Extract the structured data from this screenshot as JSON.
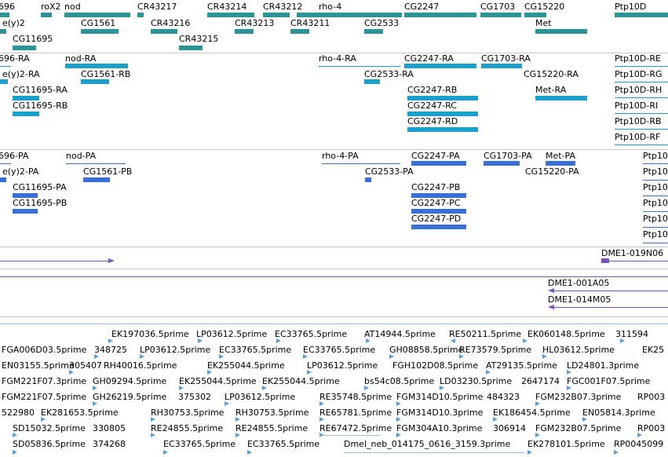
{
  "colors": {
    "gene": "#2b9494",
    "transcript_rna": "#1ba0cc",
    "transcript_protein": "#3a6fd6",
    "clone": "#7a54bf",
    "est": "#5aa0d8",
    "separator": "#c9c9c9"
  },
  "tracks": {
    "genes": [
      {
        "label": "696"
      },
      {
        "label": "roX2"
      },
      {
        "label": "nod"
      },
      {
        "label": "CR43217"
      },
      {
        "label": "CR43214"
      },
      {
        "label": "CR43212"
      },
      {
        "label": "rho-4"
      },
      {
        "label": "CG2247"
      },
      {
        "label": "CG1703"
      },
      {
        "label": "CG15220"
      },
      {
        "label": "Ptp10D"
      },
      {
        "label": "e(y)2"
      },
      {
        "label": "CG1561"
      },
      {
        "label": "CR43216"
      },
      {
        "label": "CR43213"
      },
      {
        "label": "CR43211"
      },
      {
        "label": "CG2533"
      },
      {
        "label": "Met"
      },
      {
        "label": "CG11695"
      },
      {
        "label": "CR43215"
      }
    ],
    "transcripts_rna": [
      {
        "label": "696-RA"
      },
      {
        "label": "nod-RA"
      },
      {
        "label": "rho-4-RA"
      },
      {
        "label": "CG2247-RA"
      },
      {
        "label": "CG1703-RA"
      },
      {
        "label": "Ptp10D-RE"
      },
      {
        "label": "e(y)2-RA"
      },
      {
        "label": "CG1561-RB"
      },
      {
        "label": "CG2533-RA"
      },
      {
        "label": "CG15220-RA"
      },
      {
        "label": "Ptp10D-RG"
      },
      {
        "label": "CG11695-RA"
      },
      {
        "label": "CG2247-RB"
      },
      {
        "label": "Met-RA"
      },
      {
        "label": "Ptp10D-RH"
      },
      {
        "label": "CG11695-RB"
      },
      {
        "label": "CG2247-RC"
      },
      {
        "label": "Ptp10D-RI"
      },
      {
        "label": "CG2247-RD"
      },
      {
        "label": "Ptp10D-RB"
      },
      {
        "label": "Ptp10D-RF"
      }
    ],
    "transcripts_protein": [
      {
        "label": "696-PA"
      },
      {
        "label": "nod-PA"
      },
      {
        "label": "rho-4-PA"
      },
      {
        "label": "CG2247-PA"
      },
      {
        "label": "CG1703-PA"
      },
      {
        "label": "Met-PA"
      },
      {
        "label": "Ptp10"
      },
      {
        "label": "e(y)2-PA"
      },
      {
        "label": "CG1561-PB"
      },
      {
        "label": "CG2533-PA"
      },
      {
        "label": "CG15220-PA"
      },
      {
        "label": "Ptp10"
      },
      {
        "label": "CG11695-PA"
      },
      {
        "label": "CG2247-PB"
      },
      {
        "label": "Ptp10"
      },
      {
        "label": "CG2247-PC"
      },
      {
        "label": "Ptp10"
      },
      {
        "label": "CG11695-PB"
      },
      {
        "label": "CG2247-PD"
      },
      {
        "label": "Ptp10"
      },
      {
        "label": "Ptp10"
      }
    ],
    "clones_a": [
      {
        "label": "DME1-019N06"
      }
    ],
    "clones_b": [
      {
        "label": "DME1-001A05"
      },
      {
        "label": "DME1-014M05"
      }
    ],
    "ests": [
      {
        "label": "EK197036.5prime"
      },
      {
        "label": "LP03612.5prime"
      },
      {
        "label": "EC33765.5prime"
      },
      {
        "label": "AT14944.5prime"
      },
      {
        "label": "RE50211.5prime"
      },
      {
        "label": "EK060148.5prime"
      },
      {
        "label": "311594"
      },
      {
        "label": "FGA006D03.5prime"
      },
      {
        "label": "348725"
      },
      {
        "label": "LP03612.5prime"
      },
      {
        "label": "EC33765.5prime"
      },
      {
        "label": "EC33765.5prime"
      },
      {
        "label": "GH08858.5prime"
      },
      {
        "label": "RE73579.5prime"
      },
      {
        "label": "HL03612.5prime"
      },
      {
        "label": "EK25"
      },
      {
        "label": "EN03155.5prime"
      },
      {
        "label": "305407"
      },
      {
        "label": "RH40016.5prime"
      },
      {
        "label": "EK255044.5prime"
      },
      {
        "label": "LP03612.5prime"
      },
      {
        "label": "FGH102D08.5prime"
      },
      {
        "label": "AT29135.5prime"
      },
      {
        "label": "LD24801.3prime"
      },
      {
        "label": "FGM221F07.3prime"
      },
      {
        "label": "GH09294.5prime"
      },
      {
        "label": "EK255044.5prime"
      },
      {
        "label": "EK255044.5prime"
      },
      {
        "label": "bs54c08.5prime"
      },
      {
        "label": "LD03230.5prime"
      },
      {
        "label": "2647174"
      },
      {
        "label": "FGC001F07.5prime"
      },
      {
        "label": "FGM221F07.5prime"
      },
      {
        "label": "GH26219.5prime"
      },
      {
        "label": "375302"
      },
      {
        "label": "LP03612.5prime"
      },
      {
        "label": "RE35748.5prime"
      },
      {
        "label": "FGM314D10.5prime"
      },
      {
        "label": "484323"
      },
      {
        "label": "FGM232B07.3prime"
      },
      {
        "label": "RP003"
      },
      {
        "label": "522980"
      },
      {
        "label": "EK281653.5prime"
      },
      {
        "label": "RH30753.5prime"
      },
      {
        "label": "RH30753.5prime"
      },
      {
        "label": "RE65781.5prime"
      },
      {
        "label": "FGM314D10.3prime"
      },
      {
        "label": "EK186454.5prime"
      },
      {
        "label": "EN05814.3prime"
      },
      {
        "label": "SD15032.5prime"
      },
      {
        "label": "330805"
      },
      {
        "label": "RE24855.5prime"
      },
      {
        "label": "RE24855.5prime"
      },
      {
        "label": "RE67472.5prime"
      },
      {
        "label": "FGM304A10.3prime"
      },
      {
        "label": "306914"
      },
      {
        "label": "FGM232B07.5prime"
      },
      {
        "label": "RP003"
      },
      {
        "label": "SD05836.5prime"
      },
      {
        "label": "374268"
      },
      {
        "label": "EC33765.5prime"
      },
      {
        "label": "EC33765.5prime"
      },
      {
        "label": "Dmel_neb_014175_0616_3159.3prime"
      },
      {
        "label": "EK278101.5prime"
      },
      {
        "label": "RP0045099"
      }
    ]
  }
}
